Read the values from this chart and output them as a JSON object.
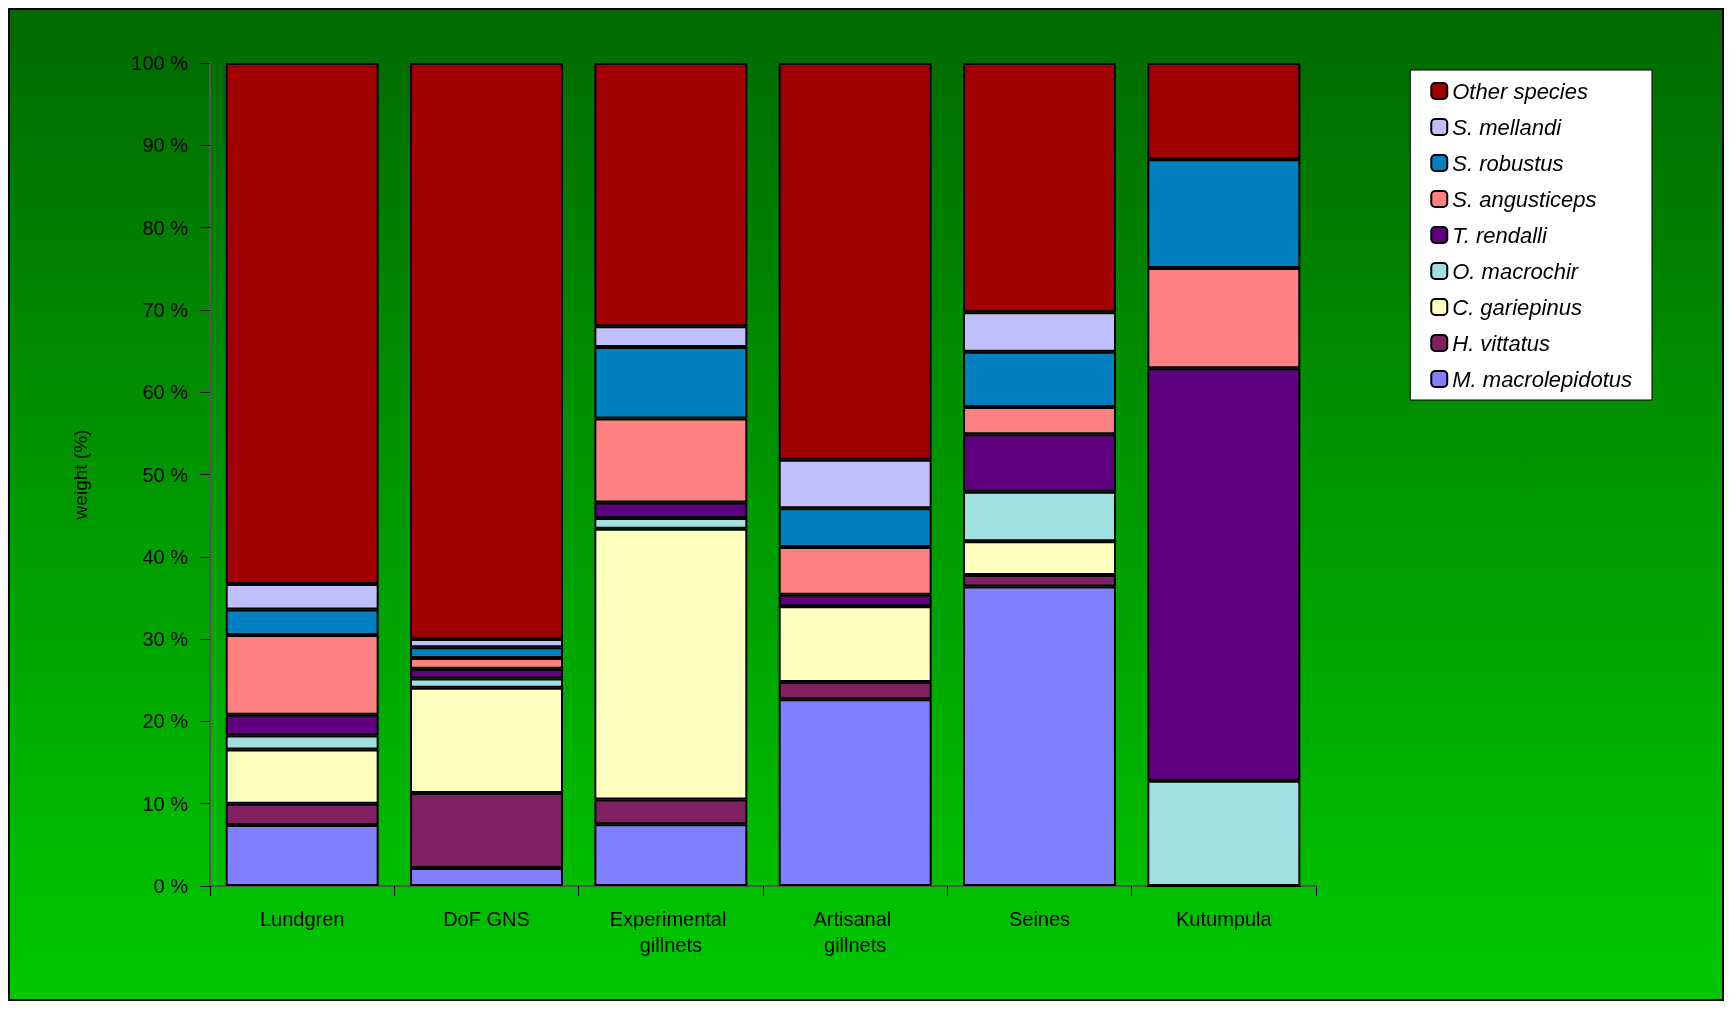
{
  "chart_data": {
    "type": "bar",
    "stacked": true,
    "ylabel": "weight (%)",
    "categories": [
      "Lundgren",
      "DoF GNS",
      "Experimental gillnets",
      "Artisanal gillnets",
      "Seines",
      "Kutumpula"
    ],
    "ylim": [
      0,
      100
    ],
    "yticks": [
      {
        "value": 0,
        "label": "0 %"
      },
      {
        "value": 10,
        "label": "10 %"
      },
      {
        "value": 20,
        "label": "20 %"
      },
      {
        "value": 30,
        "label": "30 %"
      },
      {
        "value": 40,
        "label": "40 %"
      },
      {
        "value": 50,
        "label": "50 %"
      },
      {
        "value": 60,
        "label": "60 %"
      },
      {
        "value": 70,
        "label": "70 %"
      },
      {
        "value": 80,
        "label": "80 %"
      },
      {
        "value": 90,
        "label": "90 %"
      },
      {
        "value": 100,
        "label": "100 %"
      }
    ],
    "grid": false,
    "legend": "top right",
    "series": [
      {
        "name": "M. macrolepidotus",
        "color": "#8080ff",
        "values": [
          7.4,
          2.2,
          7.5,
          22.7,
          36.4,
          0
        ]
      },
      {
        "name": "H. vittatus",
        "color": "#802060",
        "values": [
          2.6,
          9.1,
          3.0,
          2.1,
          1.4,
          0
        ]
      },
      {
        "name": "C. gariepinus",
        "color": "#ffffc0",
        "values": [
          6.6,
          12.8,
          32.9,
          9.2,
          4.1,
          0
        ]
      },
      {
        "name": "O. macrochir",
        "color": "#a0e0e0",
        "values": [
          1.7,
          1.1,
          1.3,
          0,
          6.0,
          12.8
        ]
      },
      {
        "name": "T. rendalli",
        "color": "#600080",
        "values": [
          2.5,
          1.2,
          1.9,
          1.4,
          7.0,
          50.1
        ]
      },
      {
        "name": "S. angusticeps",
        "color": "#ff8080",
        "values": [
          9.7,
          1.3,
          10.2,
          5.8,
          3.3,
          12.2
        ]
      },
      {
        "name": "S. robustus",
        "color": "#0080c0",
        "values": [
          3.1,
          1.3,
          8.7,
          4.7,
          6.7,
          13.2
        ]
      },
      {
        "name": "S. mellandi",
        "color": "#c0c0ff",
        "values": [
          3.1,
          1.0,
          2.5,
          5.9,
          4.8,
          0
        ]
      },
      {
        "name": "Other species",
        "color": "#a00000",
        "values": [
          63.3,
          70.0,
          32.0,
          48.2,
          30.3,
          11.7
        ]
      }
    ]
  }
}
